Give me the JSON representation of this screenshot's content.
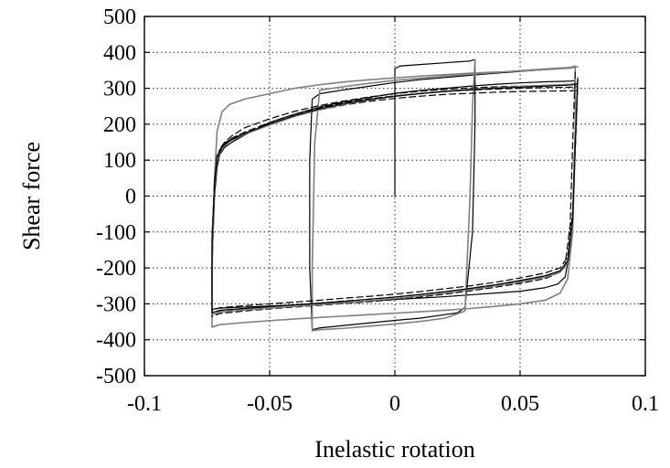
{
  "chart_data": {
    "type": "line",
    "title": "",
    "xlabel": "Inelastic rotation",
    "ylabel": "Shear force",
    "xlim": [
      -0.1,
      0.1
    ],
    "ylim": [
      -500,
      500
    ],
    "xticks": [
      -0.1,
      -0.05,
      0,
      0.05,
      0.1
    ],
    "xtick_labels": [
      "-0.1",
      "-0.05",
      "0",
      "0.05",
      "0.1"
    ],
    "yticks": [
      -500,
      -400,
      -300,
      -200,
      -100,
      0,
      100,
      200,
      300,
      400,
      500
    ],
    "ytick_labels": [
      "-500",
      "-400",
      "-300",
      "-200",
      "-100",
      "0",
      "100",
      "200",
      "300",
      "400",
      "500"
    ],
    "grid": true,
    "legend": "none",
    "series": [
      {
        "style": "solid",
        "color": "#000000",
        "x": [
          0,
          0,
          0.002,
          0.01,
          0.02,
          0.03,
          0.032,
          0.032,
          0.031,
          0.028,
          0.025,
          0.02,
          0.01,
          0,
          -0.01,
          -0.02,
          -0.03,
          -0.033,
          -0.034,
          -0.034,
          -0.033,
          -0.03,
          -0.02,
          -0.01,
          0,
          0.01,
          0.02,
          0.03,
          0.04,
          0.05,
          0.06,
          0.07,
          0.072,
          0.072,
          0.071,
          0.07,
          0.068,
          0.065,
          0.06,
          0.05,
          0.04,
          0.03,
          0.02,
          0.01,
          0,
          -0.01,
          -0.02,
          -0.03,
          -0.04,
          -0.05,
          -0.06,
          -0.07,
          -0.073,
          -0.073,
          -0.072,
          -0.071,
          -0.07,
          -0.068,
          -0.065,
          -0.06,
          -0.05,
          -0.04,
          -0.03,
          -0.02,
          -0.01,
          0,
          0.01,
          0.02,
          0.03,
          0.04,
          0.05,
          0.06,
          0.07,
          0.072
        ],
        "y": [
          0,
          355,
          362,
          366,
          371,
          376,
          380,
          200,
          -100,
          -310,
          -325,
          -330,
          -340,
          -346,
          -353,
          -360,
          -367,
          -372,
          -200,
          100,
          270,
          285,
          296,
          306,
          316,
          324,
          330,
          336,
          342,
          347,
          352,
          357,
          360,
          200,
          -50,
          -150,
          -225,
          -245,
          -255,
          -265,
          -270,
          -275,
          -280,
          -284,
          -288,
          -292,
          -296,
          -300,
          -303,
          -306,
          -309,
          -312,
          -315,
          -200,
          0,
          80,
          115,
          135,
          150,
          170,
          205,
          228,
          248,
          263,
          275,
          286,
          294,
          300,
          306,
          311,
          315,
          318,
          320,
          322
        ]
      },
      {
        "style": "solid",
        "color": "#808080",
        "x": [
          0.032,
          0.031,
          0.03,
          0.028,
          0.02,
          0.01,
          0,
          -0.01,
          -0.02,
          -0.03,
          -0.033,
          -0.033,
          -0.032,
          -0.03,
          -0.02,
          -0.01,
          0,
          0.01,
          0.02,
          0.03,
          0.04,
          0.05,
          0.06,
          0.07,
          0.072,
          0.072,
          0.071,
          0.069,
          0.066,
          0.06,
          0.05,
          0.04,
          0.03,
          0.02,
          0.01,
          0,
          -0.01,
          -0.02,
          -0.03,
          -0.04,
          -0.05,
          -0.06,
          -0.07,
          -0.073,
          -0.073,
          -0.072,
          -0.071,
          -0.069,
          -0.066,
          -0.06,
          -0.05,
          -0.04,
          -0.03,
          -0.02,
          -0.01,
          0,
          0.01,
          0.02,
          0.03,
          0.04,
          0.05,
          0.06,
          0.07,
          0.073
        ],
        "y": [
          380,
          250,
          0,
          -320,
          -340,
          -349,
          -356,
          -362,
          -368,
          -372,
          -375,
          -200,
          150,
          295,
          305,
          314,
          322,
          328,
          334,
          339,
          344,
          349,
          354,
          358,
          362,
          150,
          -100,
          -230,
          -270,
          -290,
          -300,
          -307,
          -313,
          -318,
          -322,
          -326,
          -330,
          -334,
          -338,
          -342,
          -347,
          -352,
          -358,
          -365,
          -200,
          50,
          180,
          235,
          255,
          270,
          285,
          300,
          310,
          318,
          324,
          329,
          334,
          338,
          342,
          345,
          348,
          352,
          356,
          360
        ]
      },
      {
        "style": "dashed",
        "color": "#000000",
        "x": [
          0.072,
          0.071,
          0.07,
          0.068,
          0.065,
          0.06,
          0.05,
          0.04,
          0.03,
          0.02,
          0.01,
          0,
          -0.01,
          -0.02,
          -0.03,
          -0.04,
          -0.05,
          -0.06,
          -0.07,
          -0.073,
          -0.073,
          -0.072,
          -0.071,
          -0.07,
          -0.068,
          -0.065,
          -0.06,
          -0.05,
          -0.04,
          -0.03,
          -0.02,
          -0.01,
          0,
          0.01,
          0.02,
          0.03,
          0.04,
          0.05,
          0.06,
          0.07,
          0.073
        ],
        "y": [
          345,
          150,
          -80,
          -190,
          -215,
          -230,
          -243,
          -254,
          -264,
          -273,
          -281,
          -288,
          -294,
          -299,
          -304,
          -309,
          -314,
          -320,
          -327,
          -335,
          -150,
          20,
          100,
          130,
          150,
          168,
          190,
          215,
          236,
          252,
          265,
          276,
          285,
          292,
          297,
          301,
          304,
          306,
          308,
          310,
          312
        ]
      },
      {
        "style": "dashed",
        "color": "#000000",
        "x": [
          0.073,
          0.072,
          0.071,
          0.069,
          0.066,
          0.06,
          0.05,
          0.04,
          0.03,
          0.02,
          0.01,
          0,
          -0.01,
          -0.02,
          -0.03,
          -0.04,
          -0.05,
          -0.06,
          -0.07,
          -0.073,
          -0.073,
          -0.072,
          -0.071,
          -0.069,
          -0.066,
          -0.06,
          -0.05,
          -0.04,
          -0.03,
          -0.02,
          -0.01,
          0,
          0.01,
          0.02,
          0.03,
          0.04,
          0.05,
          0.06,
          0.07,
          0.073
        ],
        "y": [
          320,
          130,
          -60,
          -180,
          -210,
          -222,
          -236,
          -248,
          -258,
          -266,
          -274,
          -281,
          -287,
          -292,
          -298,
          -303,
          -308,
          -313,
          -319,
          -325,
          -120,
          40,
          110,
          140,
          158,
          178,
          205,
          228,
          246,
          260,
          271,
          279,
          286,
          291,
          295,
          298,
          300,
          302,
          303,
          305
        ]
      },
      {
        "style": "dashed",
        "color": "#000000",
        "x": [
          0.073,
          0.072,
          0.071,
          0.069,
          0.066,
          0.06,
          0.05,
          0.04,
          0.03,
          0.02,
          0.01,
          0,
          -0.01,
          -0.02,
          -0.03,
          -0.04,
          -0.05,
          -0.06,
          -0.07,
          -0.073,
          -0.073,
          -0.072,
          -0.071,
          -0.069,
          -0.066,
          -0.06,
          -0.05,
          -0.04,
          -0.03,
          -0.02,
          -0.01,
          0,
          0.01,
          0.02,
          0.03,
          0.04,
          0.05,
          0.06,
          0.07,
          0.073
        ],
        "y": [
          300,
          120,
          -40,
          -170,
          -200,
          -214,
          -228,
          -240,
          -250,
          -258,
          -266,
          -273,
          -279,
          -284,
          -290,
          -295,
          -300,
          -305,
          -311,
          -318,
          -110,
          45,
          112,
          140,
          156,
          175,
          200,
          222,
          240,
          254,
          264,
          272,
          278,
          283,
          286,
          289,
          291,
          292,
          293,
          294
        ]
      },
      {
        "style": "solid",
        "color": "#808080",
        "x": [
          0.073,
          0.072,
          0.071,
          0.069,
          0.066,
          0.06,
          0.05,
          0.04,
          0.03,
          0.02,
          0.01,
          0,
          -0.01,
          -0.02,
          -0.03,
          -0.04,
          -0.05,
          -0.06,
          -0.07,
          -0.073,
          -0.073,
          -0.072,
          -0.071,
          -0.069,
          -0.066,
          -0.06,
          -0.05,
          -0.04,
          -0.03,
          -0.02,
          -0.01,
          0,
          0.01,
          0.02,
          0.03,
          0.04,
          0.05,
          0.06,
          0.07,
          0.073
        ],
        "y": [
          330,
          140,
          -70,
          -185,
          -212,
          -226,
          -239,
          -251,
          -261,
          -270,
          -278,
          -285,
          -291,
          -297,
          -302,
          -307,
          -312,
          -317,
          -323,
          -330,
          -140,
          30,
          105,
          133,
          152,
          172,
          198,
          222,
          241,
          256,
          268,
          278,
          286,
          292,
          297,
          301,
          305,
          308,
          311,
          314
        ]
      },
      {
        "style": "solid",
        "color": "#000000",
        "x": [
          0.073,
          0.072,
          0.071,
          0.069,
          0.066,
          0.06,
          0.05,
          0.04,
          0.03,
          0.02,
          0.01,
          0,
          -0.01,
          -0.02,
          -0.03,
          -0.04,
          -0.05,
          -0.06,
          -0.07,
          -0.073,
          -0.073,
          -0.072,
          -0.071,
          -0.069,
          -0.066,
          -0.06,
          -0.05,
          -0.04,
          -0.03,
          -0.02,
          -0.01,
          0,
          0.01,
          0.02,
          0.03,
          0.04,
          0.05,
          0.06,
          0.07,
          0.073
        ],
        "y": [
          325,
          135,
          -65,
          -182,
          -208,
          -222,
          -235,
          -247,
          -257,
          -266,
          -274,
          -281,
          -287,
          -293,
          -298,
          -303,
          -308,
          -313,
          -318,
          -325,
          -130,
          35,
          108,
          136,
          154,
          174,
          201,
          224,
          243,
          258,
          269,
          278,
          285,
          291,
          296,
          300,
          303,
          306,
          309,
          312
        ]
      }
    ]
  }
}
